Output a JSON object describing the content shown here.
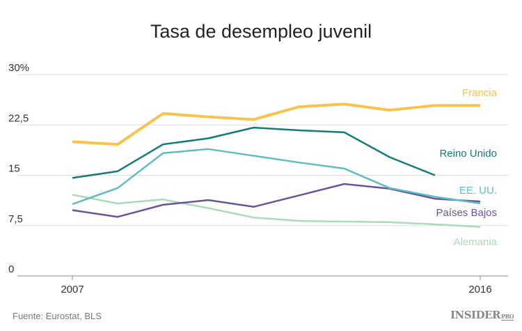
{
  "chart_data": {
    "type": "line",
    "title": "Tasa de desempleo juvenil",
    "xlabel": "",
    "ylabel": "",
    "x": [
      2007,
      2008,
      2009,
      2010,
      2011,
      2012,
      2013,
      2014,
      2015,
      2016
    ],
    "x_tick_labels": [
      "2007",
      "2016"
    ],
    "ylim": [
      0,
      30
    ],
    "y_ticks": [
      0,
      7.5,
      15,
      22.5,
      30
    ],
    "y_tick_labels": [
      "0",
      "7,5",
      "15",
      "22,5",
      "30%"
    ],
    "grid": true,
    "series": [
      {
        "name": "Francia",
        "color": "#f9c24a",
        "values": [
          20.0,
          19.6,
          24.2,
          23.7,
          23.3,
          25.2,
          25.6,
          24.7,
          25.4,
          25.4
        ]
      },
      {
        "name": "Reino Unido",
        "color": "#137b7b",
        "values": [
          14.6,
          15.6,
          19.6,
          20.5,
          22.1,
          21.7,
          21.4,
          17.7,
          15.0,
          null
        ]
      },
      {
        "name": "EE. UU.",
        "color": "#5dbdc3",
        "values": [
          10.7,
          13.1,
          18.3,
          18.9,
          17.9,
          16.9,
          16.0,
          13.1,
          11.8,
          10.8
        ]
      },
      {
        "name": "Países Bajos",
        "color": "#6a5499",
        "values": [
          9.8,
          8.8,
          10.6,
          11.3,
          10.3,
          12.0,
          13.7,
          13.0,
          11.5,
          11.1
        ]
      },
      {
        "name": "Alemania",
        "color": "#a9dbb8",
        "values": [
          12.1,
          10.8,
          11.4,
          10.1,
          8.7,
          8.2,
          8.1,
          8.0,
          7.7,
          7.3
        ]
      }
    ]
  },
  "footer": {
    "source": "Fuente: Eurostat, BLS",
    "logo": "INSIDER",
    "logo_sub": "PRO"
  }
}
